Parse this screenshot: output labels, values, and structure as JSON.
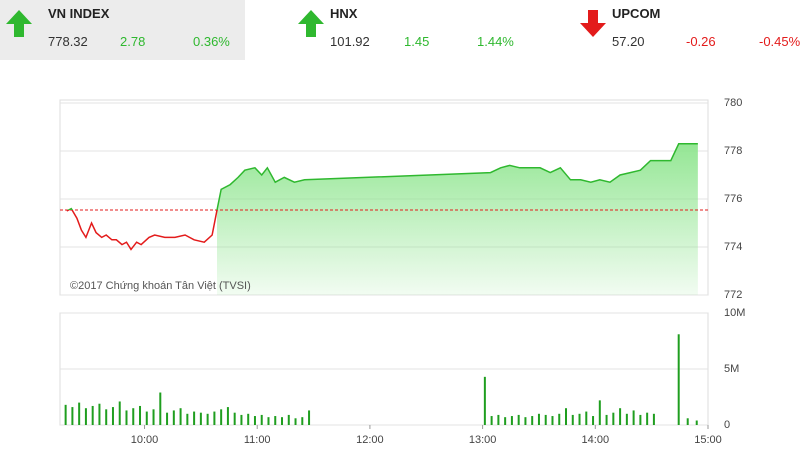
{
  "tickers": [
    {
      "name": "VN INDEX",
      "price": "778.32",
      "change": "2.78",
      "percent": "0.36%",
      "direction": "up"
    },
    {
      "name": "HNX",
      "price": "101.92",
      "change": "1.45",
      "percent": "1.44%",
      "direction": "up"
    },
    {
      "name": "UPCOM",
      "price": "57.20",
      "change": "-0.26",
      "percent": "-0.45%",
      "direction": "down"
    }
  ],
  "chart_data": [
    {
      "type": "line",
      "annotation": "©2017 Chứng khoán Tân Việt (TVSI)",
      "x": [
        9.31,
        9.35,
        9.4,
        9.44,
        9.48,
        9.53,
        9.57,
        9.62,
        9.66,
        9.71,
        9.75,
        9.8,
        9.84,
        9.88,
        9.93,
        9.97,
        10.04,
        10.09,
        10.18,
        10.27,
        10.36,
        10.44,
        10.53,
        10.6,
        10.65,
        10.68,
        10.76,
        10.83,
        10.89,
        10.98,
        11.04,
        11.09,
        11.16,
        11.24,
        11.33,
        11.42,
        13.07,
        13.16,
        13.24,
        13.33,
        13.42,
        13.51,
        13.6,
        13.69,
        13.78,
        13.87,
        13.96,
        14.04,
        14.13,
        14.22,
        14.31,
        14.4,
        14.49,
        14.67,
        14.74,
        14.91
      ],
      "values": [
        775.5,
        775.6,
        775.2,
        774.7,
        774.4,
        775.0,
        774.6,
        774.4,
        774.5,
        774.3,
        774.3,
        774.1,
        774.2,
        773.9,
        774.2,
        774.1,
        774.4,
        774.5,
        774.4,
        774.4,
        774.5,
        774.3,
        774.2,
        774.5,
        775.7,
        776.4,
        776.6,
        776.9,
        777.2,
        777.3,
        777.0,
        777.3,
        776.7,
        776.9,
        776.7,
        776.8,
        777.1,
        777.3,
        777.4,
        777.3,
        777.3,
        777.3,
        777.1,
        777.3,
        776.8,
        776.8,
        776.7,
        776.8,
        776.7,
        777.0,
        777.1,
        777.2,
        777.6,
        777.6,
        778.3,
        778.3
      ],
      "reference": 775.54,
      "color": "#2fb82f",
      "below_color": "#e31b1b",
      "reference_color": "#e31b1b",
      "fill_color": "#8fe58f",
      "xlim": [
        9.25,
        15.0
      ],
      "ylim": [
        772,
        780
      ],
      "yticks": [
        772,
        774,
        776,
        778,
        780
      ],
      "grid": true
    },
    {
      "type": "bar",
      "x": [
        9.3,
        9.36,
        9.42,
        9.48,
        9.54,
        9.6,
        9.66,
        9.72,
        9.78,
        9.84,
        9.9,
        9.96,
        10.02,
        10.08,
        10.14,
        10.2,
        10.26,
        10.32,
        10.38,
        10.44,
        10.5,
        10.56,
        10.62,
        10.68,
        10.74,
        10.8,
        10.86,
        10.92,
        10.98,
        11.04,
        11.1,
        11.16,
        11.22,
        11.28,
        11.34,
        11.4,
        11.46,
        13.02,
        13.08,
        13.14,
        13.2,
        13.26,
        13.32,
        13.38,
        13.44,
        13.5,
        13.56,
        13.62,
        13.68,
        13.74,
        13.8,
        13.86,
        13.92,
        13.98,
        14.04,
        14.1,
        14.16,
        14.22,
        14.28,
        14.34,
        14.4,
        14.46,
        14.52,
        14.74,
        14.82,
        14.9
      ],
      "values": [
        1800000,
        1600000,
        2000000,
        1500000,
        1700000,
        1900000,
        1400000,
        1600000,
        2100000,
        1300000,
        1500000,
        1700000,
        1200000,
        1400000,
        2900000,
        1100000,
        1300000,
        1500000,
        1000000,
        1200000,
        1100000,
        1000000,
        1200000,
        1400000,
        1600000,
        1100000,
        900000,
        1000000,
        800000,
        900000,
        700000,
        800000,
        700000,
        900000,
        600000,
        700000,
        1300000,
        4300000,
        800000,
        900000,
        700000,
        800000,
        900000,
        700000,
        800000,
        1000000,
        900000,
        800000,
        1000000,
        1500000,
        900000,
        1000000,
        1200000,
        800000,
        2200000,
        900000,
        1100000,
        1500000,
        1000000,
        1300000,
        900000,
        1100000,
        1000000,
        8100000,
        600000,
        400000
      ],
      "color": "#1f9e1f",
      "xlim": [
        9.25,
        15.0
      ],
      "xticks": [
        {
          "value": 10,
          "label": "10:00"
        },
        {
          "value": 11,
          "label": "11:00"
        },
        {
          "value": 12,
          "label": "12:00"
        },
        {
          "value": 13,
          "label": "13:00"
        },
        {
          "value": 14,
          "label": "14:00"
        },
        {
          "value": 15,
          "label": "15:00"
        }
      ],
      "ylim": [
        0,
        10000000
      ],
      "yticks": [
        0,
        {
          "value": 5000000,
          "label": "5M"
        },
        {
          "value": 10000000,
          "label": "10M"
        }
      ],
      "grid": true
    }
  ]
}
